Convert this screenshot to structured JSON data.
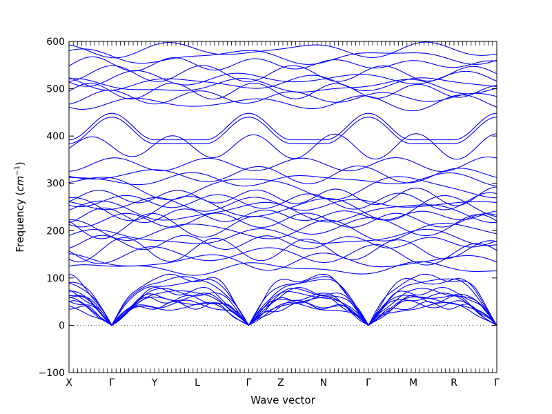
{
  "chart_data": {
    "type": "line",
    "title": "",
    "xlabel": "Wave vector",
    "ylabel_prefix": "Frequency (",
    "ylabel_unit": "cm",
    "ylabel_exp": "−1",
    "ylabel_suffix": ")",
    "ylim": [
      -100,
      600
    ],
    "yticks": [
      -100,
      0,
      100,
      200,
      300,
      400,
      500,
      600
    ],
    "xlim": [
      0,
      10
    ],
    "high_symmetry_points": [
      {
        "label": "X",
        "x": 0
      },
      {
        "label": "Γ",
        "x": 1
      },
      {
        "label": "Y",
        "x": 2
      },
      {
        "label": "L",
        "x": 3
      },
      {
        "label": "Γ",
        "x": 4.2
      },
      {
        "label": "Z",
        "x": 4.95
      },
      {
        "label": "N",
        "x": 5.95
      },
      {
        "label": "Γ",
        "x": 7
      },
      {
        "label": "M",
        "x": 8.05
      },
      {
        "label": "R",
        "x": 9
      },
      {
        "label": "Γ",
        "x": 10
      }
    ],
    "zero_line": 0,
    "line_color": "#0000ff",
    "zero_line_color": "#555555",
    "gamma_points": [
      1,
      4.2,
      7,
      10
    ],
    "acoustic_branch_endpoints": [
      90,
      65,
      52,
      40,
      95,
      70,
      60,
      45,
      100,
      72,
      55,
      42
    ],
    "optical_branch_levels": [
      120,
      135,
      150,
      160,
      175,
      185,
      200,
      210,
      222,
      232,
      240,
      248,
      256,
      262,
      272,
      292,
      308,
      318,
      340,
      378,
      412,
      440,
      470,
      482,
      495,
      505,
      512,
      522,
      532,
      552,
      568,
      582
    ]
  }
}
